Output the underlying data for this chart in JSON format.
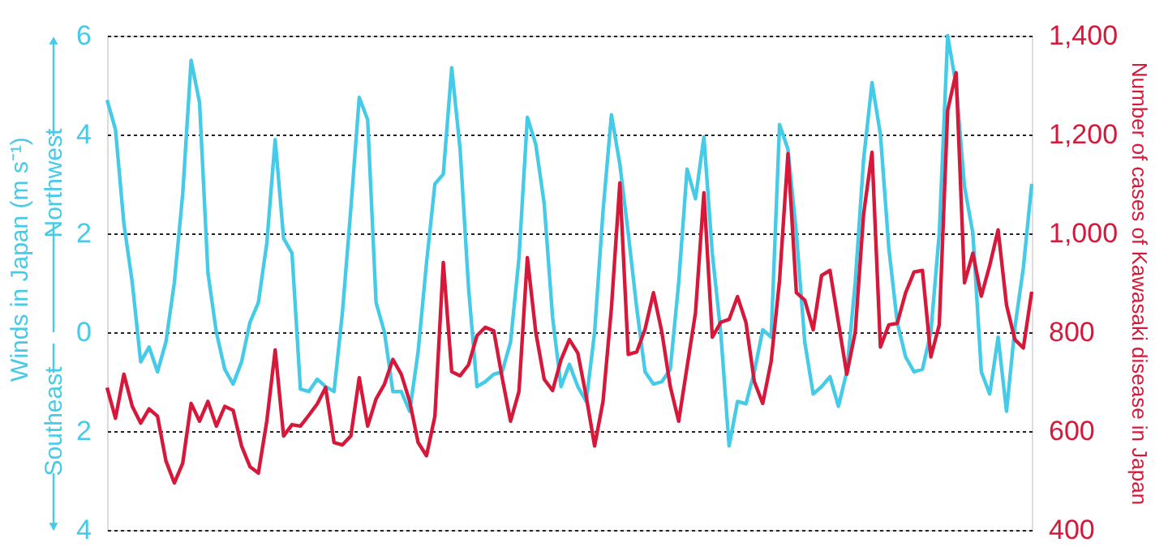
{
  "chart_data": {
    "type": "line",
    "ylabel": "Winds in Japan (m s⁻¹)",
    "y2label": "Number of cases of Kawasaki disease in Japan",
    "annotations": [
      "Northwest",
      "Southeast"
    ],
    "categories": [
      null,
      null,
      null,
      null,
      null,
      null,
      null,
      null,
      null,
      null,
      null,
      null,
      null,
      null,
      null,
      null,
      null,
      null,
      null,
      null,
      null,
      null,
      null,
      null,
      null,
      null,
      null,
      null,
      null,
      null,
      null,
      null,
      null,
      null,
      null,
      null,
      null,
      null,
      null,
      null,
      null,
      null,
      null,
      null,
      null,
      null,
      null,
      null,
      null,
      null,
      null,
      null,
      null,
      null,
      null,
      null,
      null,
      null,
      null,
      null,
      null,
      null,
      null,
      null,
      null,
      null,
      null,
      null,
      null,
      null,
      null,
      null,
      null,
      null,
      null,
      null,
      null,
      null,
      null,
      null,
      null,
      null,
      null,
      null,
      null,
      null,
      null,
      null,
      null,
      null,
      null,
      null,
      null,
      null,
      null,
      null,
      null,
      null,
      null,
      null,
      null,
      null,
      null,
      null,
      null,
      null,
      null,
      null,
      null,
      null,
      null
    ],
    "ylim": [
      -4,
      6
    ],
    "yticks": [
      6,
      4,
      2,
      0,
      {
        "value": -2,
        "label": "2"
      },
      {
        "value": -4,
        "label": "4"
      }
    ],
    "y2lim": [
      400,
      1400
    ],
    "y2ticks": [
      {
        "value": 1400,
        "label": "1,400"
      },
      {
        "value": 1200,
        "label": "1,200"
      },
      {
        "value": 1000,
        "label": "1,000"
      },
      800,
      600,
      400
    ],
    "grid": "y",
    "line_style": "solid",
    "marker": "none",
    "series": [
      {
        "axis": "y",
        "color": "#45cbe8",
        "values": [
          4.7,
          4.1,
          2.2,
          1.0,
          -0.6,
          -0.3,
          -0.8,
          -0.2,
          1.0,
          2.8,
          5.5,
          4.65,
          1.2,
          0.0,
          -0.75,
          -1.05,
          -0.6,
          0.2,
          0.6,
          1.8,
          3.9,
          1.9,
          1.6,
          -1.15,
          -1.2,
          -0.95,
          -1.1,
          -1.2,
          0.4,
          2.5,
          4.75,
          4.3,
          0.6,
          0.0,
          -1.2,
          -1.2,
          -1.6,
          -0.4,
          1.4,
          3.0,
          3.2,
          5.35,
          3.7,
          0.9,
          -1.1,
          -1.0,
          -0.85,
          -0.8,
          -0.2,
          1.5,
          4.35,
          3.8,
          2.6,
          0.3,
          -1.1,
          -0.65,
          -1.1,
          -1.4,
          0.0,
          2.45,
          4.4,
          3.4,
          2.0,
          0.5,
          -0.8,
          -1.05,
          -1.0,
          -0.75,
          1.0,
          3.3,
          2.7,
          3.95,
          1.6,
          0.0,
          -2.3,
          -1.4,
          -1.45,
          -0.8,
          0.05,
          -0.1,
          4.2,
          3.7,
          2.0,
          -0.2,
          -1.25,
          -1.1,
          -0.9,
          -1.5,
          -0.8,
          1.0,
          3.5,
          5.05,
          4.0,
          1.7,
          0.2,
          -0.5,
          -0.8,
          -0.75,
          0.0,
          2.0,
          6.0,
          5.0,
          2.95,
          2.0,
          -0.8,
          -1.25,
          -0.1,
          -1.6,
          0.1,
          1.3,
          3.0
        ]
      },
      {
        "axis": "y2",
        "color": "#d6193b",
        "values": [
          688,
          626,
          715,
          650,
          616,
          645,
          630,
          540,
          495,
          535,
          656,
          620,
          660,
          610,
          650,
          642,
          570,
          528,
          515,
          620,
          764,
          590,
          613,
          610,
          632,
          655,
          688,
          577,
          572,
          590,
          708,
          610,
          665,
          695,
          745,
          715,
          660,
          577,
          550,
          630,
          941,
          720,
          712,
          734,
          793,
          810,
          803,
          708,
          620,
          680,
          951,
          800,
          705,
          682,
          744,
          785,
          758,
          670,
          570,
          660,
          849,
          1102,
          755,
          760,
          806,
          880,
          800,
          690,
          620,
          730,
          839,
          1082,
          790,
          820,
          826,
          872,
          820,
          700,
          656,
          741,
          905,
          1161,
          880,
          865,
          805,
          915,
          925,
          820,
          715,
          800,
          1039,
          1164,
          770,
          815,
          818,
          880,
          922,
          925,
          750,
          815,
          1249,
          1325,
          900,
          960,
          873,
          935,
          1007,
          855,
          785,
          768,
          882
        ]
      }
    ]
  }
}
